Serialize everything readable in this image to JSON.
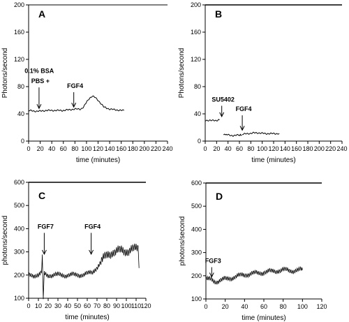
{
  "chart_data": [
    {
      "type": "line",
      "panel": "A",
      "xlabel": "time (minutes)",
      "ylabel": "Photons/second",
      "xlim": [
        0,
        240
      ],
      "ylim": [
        0,
        200
      ],
      "x_ticks": [
        0,
        20,
        40,
        60,
        80,
        100,
        120,
        140,
        160,
        180,
        200,
        220,
        240
      ],
      "y_ticks": [
        0,
        40,
        80,
        120,
        160,
        200
      ],
      "series": [
        {
          "x": [
            0,
            10,
            20,
            30,
            40,
            50,
            60,
            70,
            80,
            90,
            95,
            100,
            105,
            110,
            115,
            120,
            125,
            130,
            140,
            150,
            160,
            165
          ],
          "y": [
            45,
            44,
            44,
            45,
            45,
            45,
            45,
            46,
            47,
            47,
            50,
            57,
            63,
            66,
            64,
            60,
            55,
            50,
            47,
            46,
            45,
            45
          ]
        }
      ],
      "annotations": [
        {
          "text": "0.1% BSA",
          "x": 16,
          "label_y": 100,
          "arrow_to_y": 0
        },
        {
          "text": "PBS +",
          "x": 18,
          "label_y": 85,
          "arrow_to_y": 48
        },
        {
          "text": "FGF4",
          "x": 78,
          "label_y": 78,
          "arrow_to_y": 50
        }
      ]
    },
    {
      "type": "line",
      "panel": "B",
      "xlabel": "time (minutes)",
      "ylabel": "Photons/second",
      "xlim": [
        0,
        240
      ],
      "ylim": [
        0,
        200
      ],
      "x_ticks": [
        0,
        20,
        40,
        60,
        80,
        100,
        120,
        140,
        160,
        180,
        200,
        220,
        240
      ],
      "y_ticks": [
        0,
        40,
        80,
        120,
        160,
        200
      ],
      "series": [
        {
          "x": [
            0,
            5,
            10,
            15,
            20,
            25
          ],
          "y": [
            31,
            30,
            30,
            31,
            30,
            31
          ]
        },
        {
          "x": [
            32,
            40,
            50,
            60,
            64
          ],
          "y": [
            9,
            9,
            8,
            9,
            9
          ]
        },
        {
          "x": [
            65,
            75,
            85,
            95,
            105,
            115,
            125,
            130
          ],
          "y": [
            10,
            11,
            12,
            12,
            11,
            11,
            11,
            11
          ]
        }
      ],
      "annotations": [
        {
          "text": "SU5402",
          "x": 29,
          "label_y": 58,
          "arrow_to_y": 36
        },
        {
          "text": "FGF4",
          "x": 65,
          "label_y": 44,
          "arrow_to_y": 16
        }
      ]
    },
    {
      "type": "line",
      "panel": "C",
      "xlabel": "time (minutes)",
      "ylabel": "photons/second",
      "xlim": [
        0,
        120
      ],
      "ylim": [
        100,
        600
      ],
      "x_ticks": [
        0,
        10,
        20,
        30,
        40,
        50,
        60,
        70,
        80,
        90,
        100,
        110,
        120
      ],
      "y_ticks": [
        100,
        200,
        300,
        400,
        500,
        600
      ],
      "series": [
        {
          "x": [
            0,
            10,
            13,
            14,
            15,
            16,
            20,
            30,
            40,
            50,
            60,
            65,
            70,
            75,
            80,
            85,
            90,
            95,
            100,
            105,
            110,
            112,
            113
          ],
          "y": [
            200,
            200,
            205,
            265,
            100,
            205,
            200,
            200,
            200,
            200,
            205,
            210,
            235,
            260,
            285,
            300,
            300,
            305,
            305,
            310,
            310,
            315,
            230
          ]
        }
      ],
      "annotations": [
        {
          "text": "FGF7",
          "x": 16,
          "label_y": 400,
          "arrow_to_y": 290
        },
        {
          "text": "FGF4",
          "x": 64,
          "label_y": 400,
          "arrow_to_y": 290
        }
      ]
    },
    {
      "type": "line",
      "panel": "D",
      "xlabel": "time (minutes)",
      "ylabel": "photons/second",
      "xlim": [
        0,
        120
      ],
      "ylim": [
        100,
        600
      ],
      "x_ticks": [
        0,
        20,
        40,
        60,
        80,
        100,
        120
      ],
      "y_ticks": [
        100,
        200,
        300,
        400,
        500,
        600
      ],
      "series": [
        {
          "x": [
            0,
            5,
            10,
            15,
            20,
            30,
            40,
            50,
            60,
            70,
            80,
            90,
            100
          ],
          "y": [
            185,
            183,
            175,
            180,
            185,
            195,
            205,
            210,
            215,
            220,
            225,
            222,
            225
          ]
        }
      ],
      "annotations": [
        {
          "text": "FGF3",
          "x": 6,
          "label_y": 255,
          "arrow_to_y": 195
        }
      ]
    }
  ]
}
